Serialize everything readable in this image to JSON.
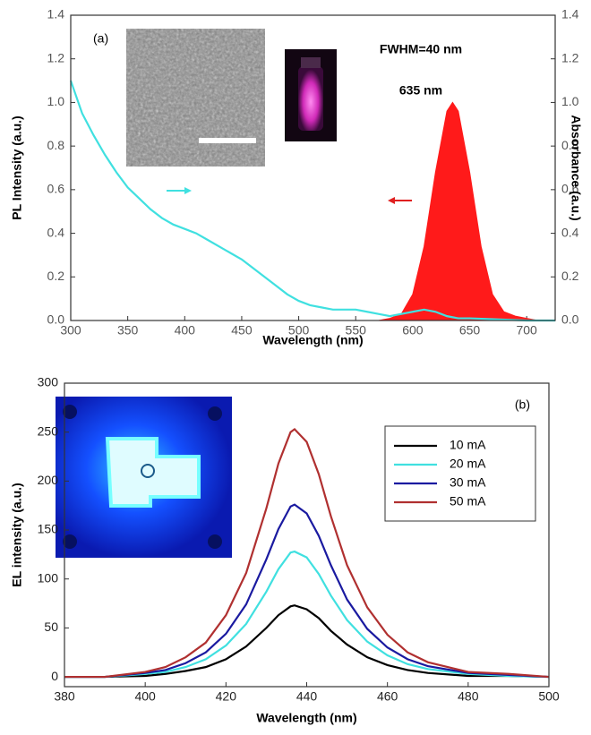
{
  "chart_data": [
    {
      "type": "line",
      "annotations": [
        "(a)",
        "FWHM=40 nm",
        "635 nm"
      ],
      "xlabel": "Wavelength (nm)",
      "ylabel": "PL Intensity (a.u.)",
      "y2label": "Absorbance (a.u.)",
      "xlim": [
        300,
        725
      ],
      "xticks": [
        300,
        350,
        400,
        450,
        500,
        550,
        600,
        650,
        700
      ],
      "ylim": [
        0,
        1.4
      ],
      "yticks": [
        {
          "value": 0,
          "label": "0.0"
        },
        0.2,
        0.4,
        0.6,
        0.8,
        {
          "value": 1,
          "label": "1.0"
        },
        1.2,
        1.4
      ],
      "y2lim": [
        0,
        1.4
      ],
      "y2ticks": [
        {
          "value": 0,
          "label": "0.0"
        },
        0.2,
        0.4,
        0.6,
        0.8,
        {
          "value": 1,
          "label": "1.0"
        },
        1.2,
        1.4
      ],
      "series": [
        {
          "color": "#ff1a1a",
          "fill": true,
          "x": [
            520,
            560,
            570,
            580,
            590,
            600,
            610,
            620,
            630,
            635,
            640,
            650,
            660,
            670,
            680,
            690,
            700,
            710
          ],
          "values": [
            0,
            0,
            0,
            0.01,
            0.03,
            0.12,
            0.34,
            0.68,
            0.96,
            1.0,
            0.96,
            0.68,
            0.34,
            0.12,
            0.04,
            0.02,
            0.01,
            0
          ]
        },
        {
          "color": "#40e0e0",
          "axis": "y2",
          "x": [
            300,
            310,
            320,
            330,
            340,
            350,
            360,
            370,
            380,
            390,
            400,
            410,
            420,
            430,
            440,
            450,
            460,
            470,
            480,
            490,
            500,
            510,
            520,
            530,
            540,
            550,
            560,
            570,
            580,
            590,
            600,
            610,
            620,
            630,
            640,
            650,
            700,
            725
          ],
          "values": [
            1.1,
            0.95,
            0.85,
            0.76,
            0.68,
            0.61,
            0.56,
            0.51,
            0.47,
            0.44,
            0.42,
            0.4,
            0.37,
            0.34,
            0.31,
            0.28,
            0.24,
            0.2,
            0.16,
            0.12,
            0.09,
            0.07,
            0.06,
            0.05,
            0.05,
            0.05,
            0.04,
            0.03,
            0.02,
            0.03,
            0.04,
            0.05,
            0.04,
            0.02,
            0.01,
            0.01,
            0,
            0
          ]
        }
      ]
    },
    {
      "type": "line",
      "annotations": [
        "(b)"
      ],
      "xlabel": "Wavelength (nm)",
      "ylabel": "EL intensity (a.u.)",
      "xlim": [
        380,
        500
      ],
      "xticks": [
        380,
        400,
        420,
        440,
        460,
        480,
        500
      ],
      "ylim": [
        -10,
        300
      ],
      "yticks": [
        0,
        50,
        100,
        150,
        200,
        250,
        300
      ],
      "legend": "upper right",
      "x": [
        380,
        390,
        400,
        405,
        410,
        415,
        420,
        425,
        430,
        433,
        436,
        437,
        440,
        443,
        446,
        450,
        455,
        460,
        465,
        470,
        480,
        490,
        500
      ],
      "series": [
        {
          "name": "10 mA",
          "color": "#000000",
          "values": [
            0,
            0,
            1,
            3,
            6,
            10,
            18,
            31,
            50,
            63,
            72,
            73,
            69,
            60,
            47,
            33,
            20,
            12,
            7,
            4,
            1,
            1,
            0
          ]
        },
        {
          "name": "20 mA",
          "color": "#40e0e0",
          "values": [
            0,
            0,
            3,
            5,
            10,
            18,
            32,
            54,
            87,
            110,
            127,
            128,
            122,
            105,
            83,
            58,
            36,
            22,
            13,
            8,
            3,
            1,
            0
          ]
        },
        {
          "name": "30 mA",
          "color": "#1a1aa0",
          "values": [
            0,
            0,
            4,
            7,
            14,
            25,
            44,
            74,
            120,
            151,
            174,
            176,
            167,
            144,
            114,
            79,
            49,
            30,
            18,
            11,
            4,
            2,
            0
          ]
        },
        {
          "name": "50 mA",
          "color": "#b03030",
          "values": [
            0,
            0,
            5,
            10,
            20,
            35,
            63,
            106,
            172,
            218,
            250,
            253,
            240,
            207,
            164,
            114,
            71,
            43,
            25,
            15,
            5,
            3,
            0
          ]
        }
      ]
    }
  ]
}
